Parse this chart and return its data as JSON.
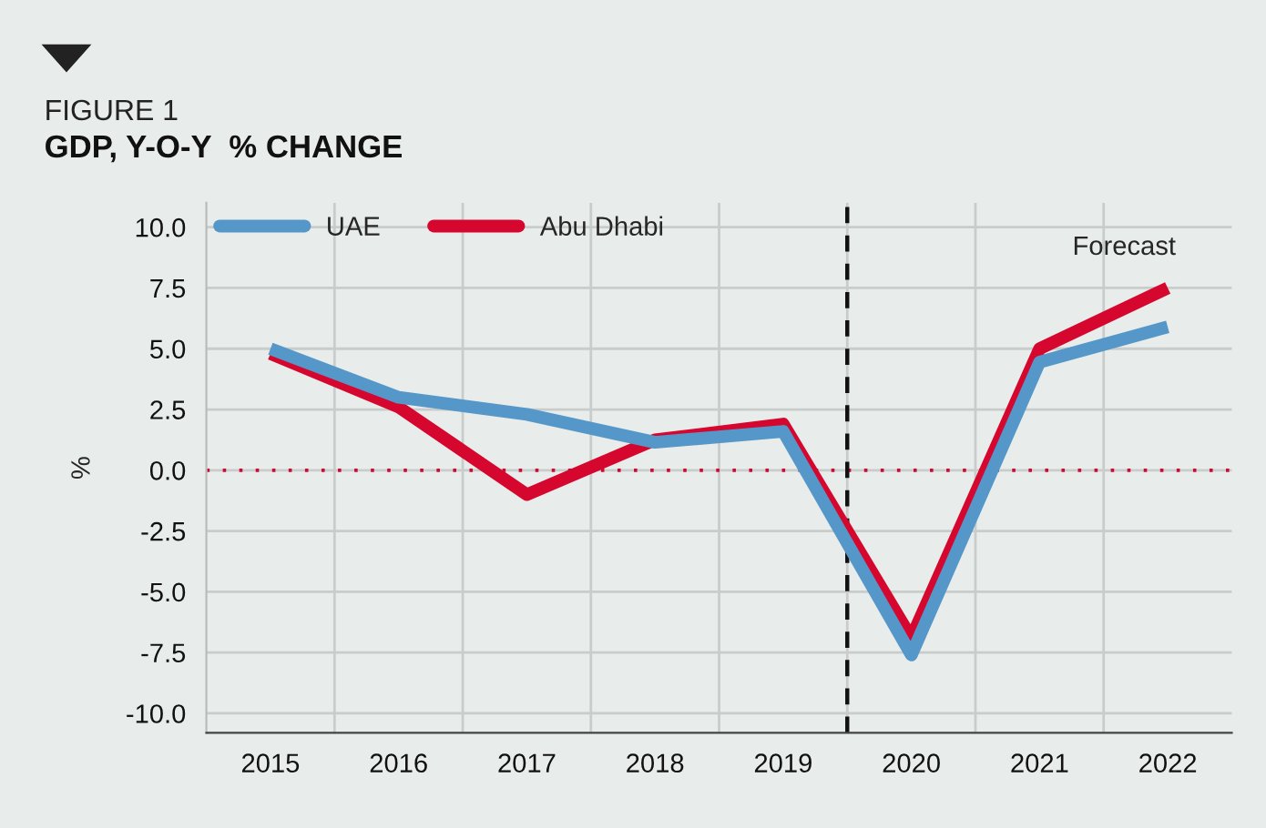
{
  "chart_data": {
    "type": "line",
    "title": "FIGURE 1",
    "subtitle": "GDP, Y-O-Y  % CHANGE",
    "ylabel": "%",
    "x": [
      2015,
      2016,
      2017,
      2018,
      2019,
      2020,
      2021,
      2022
    ],
    "series": [
      {
        "name": "UAE",
        "color": "#5497c8",
        "values": [
          5.0,
          3.0,
          2.3,
          1.15,
          1.6,
          -7.6,
          4.45,
          5.9
        ]
      },
      {
        "name": "Abu Dhabi",
        "color": "#d5072f",
        "values": [
          4.8,
          2.6,
          -1.0,
          1.25,
          1.9,
          -6.9,
          5.0,
          7.5
        ]
      }
    ],
    "xlim": [
      2014.5,
      2022.5
    ],
    "xticks": [
      2015,
      2016,
      2017,
      2018,
      2019,
      2020,
      2021,
      2022,
      {
        "value": 2015.5,
        "label": null
      },
      {
        "value": 2016.5,
        "label": null
      },
      {
        "value": 2017.5,
        "label": null
      },
      {
        "value": 2018.5,
        "label": null
      },
      {
        "value": 2019.5,
        "label": null
      },
      {
        "value": 2020.5,
        "label": null
      },
      {
        "value": 2021.5,
        "label": null
      }
    ],
    "ylim": [
      -10.8,
      11.0
    ],
    "yticks": [
      {
        "value": -10,
        "label": "-10.0"
      },
      {
        "value": -7.5,
        "label": "-7.5"
      },
      {
        "value": -5,
        "label": "-5.0"
      },
      {
        "value": -2.5,
        "label": "-2.5"
      },
      {
        "value": 0,
        "label": "0.0"
      },
      {
        "value": 2.5,
        "label": "2.5"
      },
      {
        "value": 5,
        "label": "5.0"
      },
      {
        "value": 7.5,
        "label": "7.5"
      },
      {
        "value": 10,
        "label": "10.0"
      }
    ],
    "ref_lines": [
      {
        "axis": "y",
        "value": 0,
        "color": "#d5072f",
        "line_style": "dotted"
      },
      {
        "axis": "x",
        "value": 2019.5,
        "color": "#111111",
        "line_style": "dashed"
      }
    ],
    "annotations": [
      "Forecast"
    ],
    "grid": true,
    "legend": "top left",
    "marker": "none",
    "line_style": "solid"
  }
}
